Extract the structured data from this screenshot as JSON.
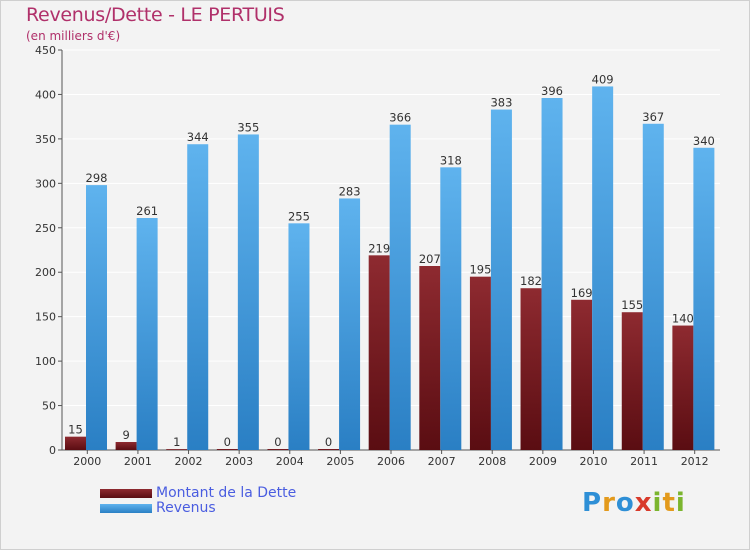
{
  "title": "Revenus/Dette - LE PERTUIS",
  "subtitle": "(en milliers d'€)",
  "legend": {
    "debt_label": "Montant de la Dette",
    "revenue_label": "Revenus"
  },
  "logo": {
    "letters": [
      "P",
      "r",
      "o",
      "x",
      "i",
      "t",
      "i"
    ]
  },
  "colors": {
    "debt": "#7a1a1f",
    "revenue": "#3f9be0",
    "title": "#b0306a",
    "legend_text": "#4a5de0"
  },
  "chart_data": {
    "type": "bar",
    "title": "Revenus/Dette - LE PERTUIS",
    "ylabel": "(en milliers d'€)",
    "xlabel": "",
    "ylim": [
      0,
      450
    ],
    "yticks": [
      0,
      50,
      100,
      150,
      200,
      250,
      300,
      350,
      400,
      450
    ],
    "grid": true,
    "legend_position": "bottom-left",
    "categories": [
      "2000",
      "2001",
      "2002",
      "2003",
      "2004",
      "2005",
      "2006",
      "2007",
      "2008",
      "2009",
      "2010",
      "2011",
      "2012"
    ],
    "series": [
      {
        "name": "Montant de la Dette",
        "values": [
          15,
          9,
          1,
          0,
          0,
          0,
          219,
          207,
          195,
          182,
          169,
          155,
          140
        ]
      },
      {
        "name": "Revenus",
        "values": [
          298,
          261,
          344,
          355,
          255,
          283,
          366,
          318,
          383,
          396,
          409,
          367,
          340
        ]
      }
    ]
  }
}
